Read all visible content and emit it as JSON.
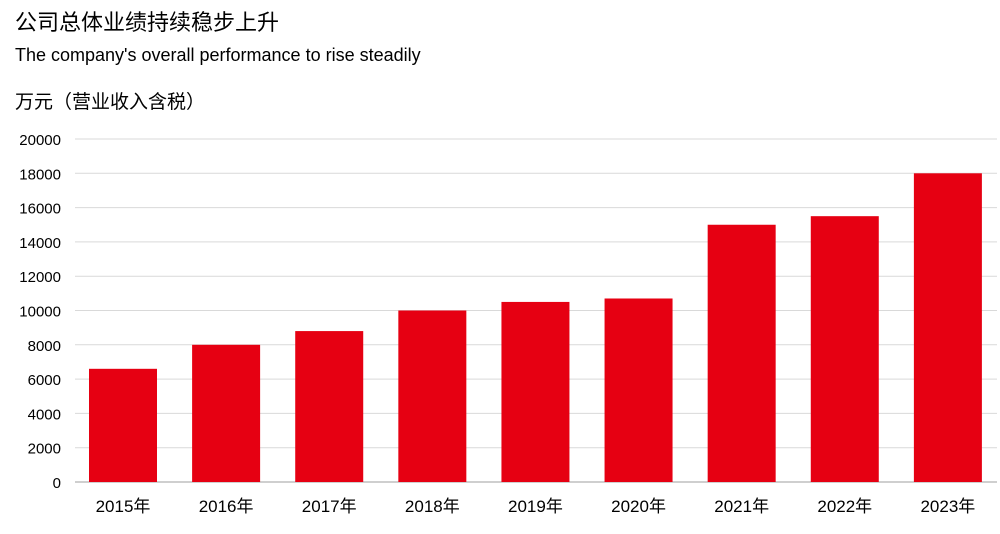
{
  "header": {
    "title": "公司总体业绩持续稳步上升",
    "subtitle": "The company's overall performance to rise steadily",
    "unit_label": "万元（营业收入含税）"
  },
  "colors": {
    "bar": "#e60012",
    "grid": "#d9d9d9",
    "axis": "#bfbfbf"
  },
  "chart_data": {
    "type": "bar",
    "title": "公司总体业绩持续稳步上升",
    "subtitle": "The company's overall performance to rise steadily",
    "ylabel": "万元（营业收入含税）",
    "xlabel": "",
    "categories": [
      "2015年",
      "2016年",
      "2017年",
      "2018年",
      "2019年",
      "2020年",
      "2021年",
      "2022年",
      "2023年"
    ],
    "values": [
      6600,
      8000,
      8800,
      10000,
      10500,
      10700,
      15000,
      15500,
      18000
    ],
    "ylim": [
      0,
      20000
    ],
    "yticks": [
      0,
      2000,
      4000,
      6000,
      8000,
      10000,
      12000,
      14000,
      16000,
      18000,
      20000
    ],
    "grid": true,
    "legend": "none"
  }
}
